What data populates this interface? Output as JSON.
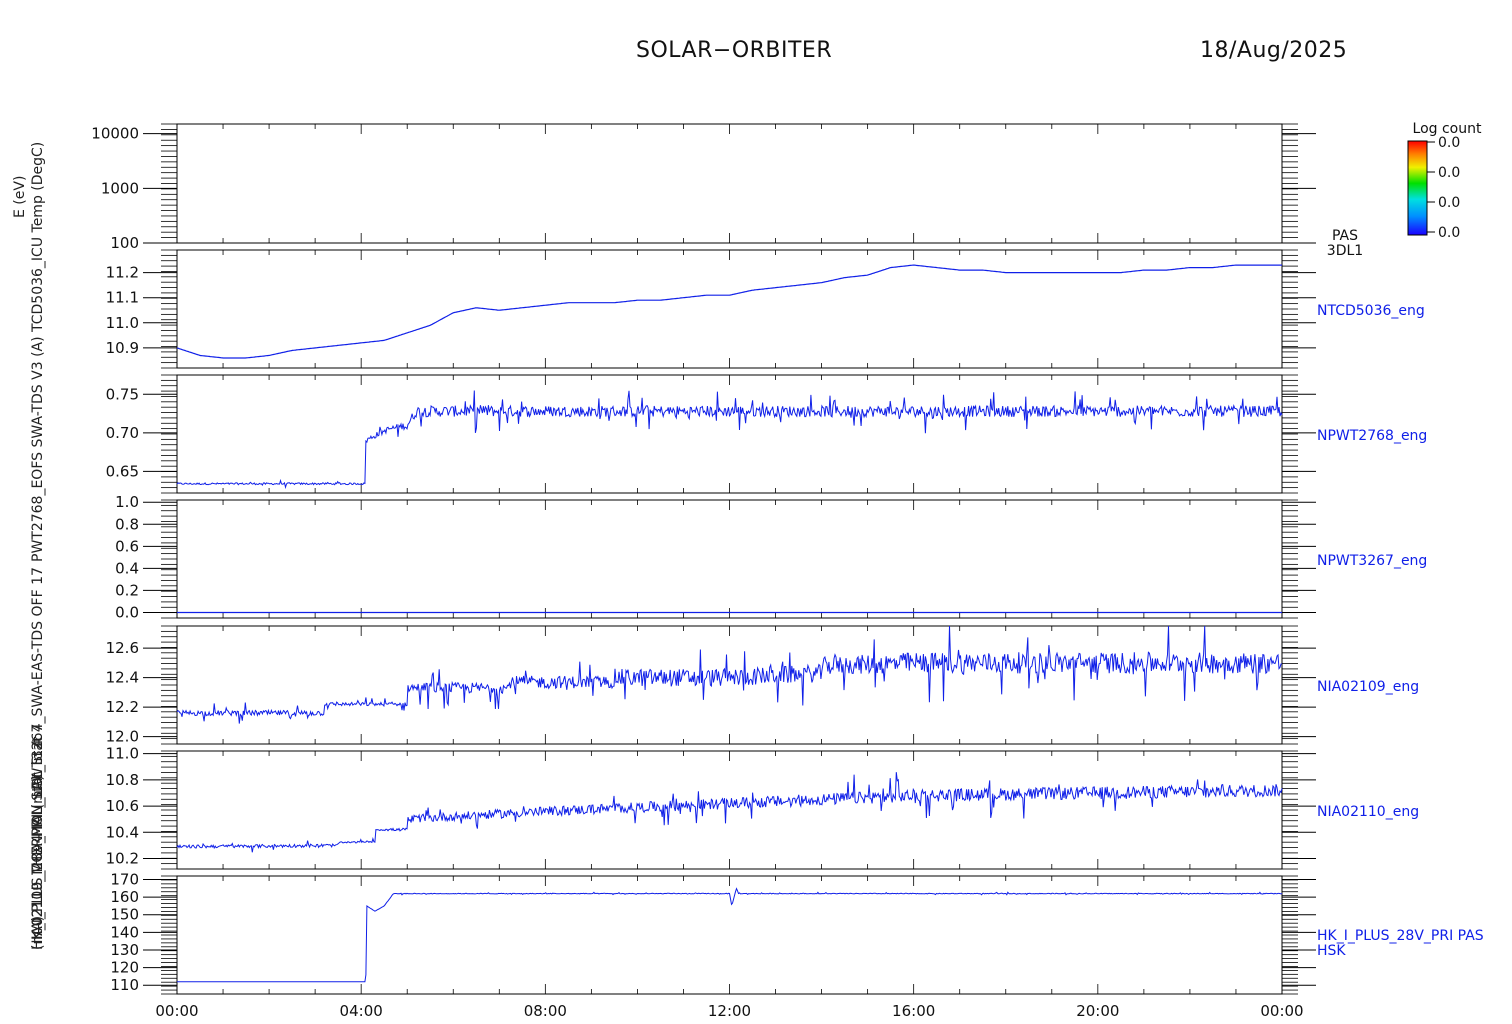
{
  "header": {
    "title": "SOLAR−ORBITER",
    "date": "18/Aug/2025"
  },
  "colorbar": {
    "label": "Log count",
    "ticks": [
      "0.0",
      "0.0",
      "0.0",
      "0.0"
    ]
  },
  "x_axis": {
    "ticks": [
      "00:00",
      "04:00",
      "08:00",
      "12:00",
      "16:00",
      "20:00",
      "00:00"
    ]
  },
  "vertical_labels": [
    "E (eV)",
    "TCD5036_ICU Temp (DegC)",
    "PWT2768_EOFS SWA-TDS V3 (A)",
    "PWT3267_SWA-EAS-TDS OFF 17",
    "IA02109_MCA4 ION_LCL_Stat 4",
    "IA02110_THERMAL_Stat_in 4",
    "HK_I_PLUS_28V_PRI (mA)",
    "(mA)"
  ],
  "chart_data": [
    {
      "type": "spectrogram",
      "name": "PAS 3DL1",
      "label": "PAS\n3DL1",
      "ylabel": "E (eV)",
      "yscale": "log",
      "ylim": [
        100,
        15000
      ],
      "yticks": [
        100,
        1000,
        10000
      ],
      "data": "empty"
    },
    {
      "type": "line",
      "name": "NTCD5036_eng",
      "ylabel": "TCD5036_ICU Temp (DegC)",
      "ylim": [
        10.82,
        11.29
      ],
      "yticks": [
        10.9,
        11.0,
        11.1,
        11.2
      ],
      "x": [
        0,
        0.5,
        1,
        1.5,
        2,
        2.5,
        3,
        3.5,
        4,
        4.5,
        5,
        5.5,
        6,
        6.5,
        7,
        7.5,
        8,
        8.5,
        9,
        9.5,
        10,
        10.5,
        11,
        11.5,
        12,
        12.5,
        13,
        13.5,
        14,
        14.5,
        15,
        15.5,
        16,
        16.5,
        17,
        17.5,
        18,
        18.5,
        19,
        19.5,
        20,
        20.5,
        21,
        21.5,
        22,
        22.5,
        23,
        23.5,
        24
      ],
      "y": [
        10.9,
        10.87,
        10.86,
        10.86,
        10.87,
        10.89,
        10.9,
        10.91,
        10.92,
        10.93,
        10.96,
        10.99,
        11.04,
        11.06,
        11.05,
        11.06,
        11.07,
        11.08,
        11.08,
        11.08,
        11.09,
        11.09,
        11.1,
        11.11,
        11.11,
        11.13,
        11.14,
        11.15,
        11.16,
        11.18,
        11.19,
        11.22,
        11.23,
        11.22,
        11.21,
        11.21,
        11.2,
        11.2,
        11.2,
        11.2,
        11.2,
        11.2,
        11.21,
        11.21,
        11.22,
        11.22,
        11.23,
        11.23,
        11.23
      ]
    },
    {
      "type": "line",
      "name": "NPWT2768_eng",
      "ylabel": "PWT2768_EOFS SWA-TDS V3 (A)",
      "ylim": [
        0.622,
        0.775
      ],
      "yticks": [
        0.65,
        0.7,
        0.75
      ],
      "x": [
        0,
        4.1,
        4.1,
        4.25,
        4.6,
        5.0,
        5.2,
        24
      ],
      "y": [
        0.634,
        0.634,
        0.69,
        0.695,
        0.705,
        0.71,
        0.728,
        0.728
      ],
      "noise": [
        0.002,
        0.002,
        0.006,
        0.006,
        0.006,
        0.008,
        0.012,
        0.012
      ]
    },
    {
      "type": "line",
      "name": "NPWT3267_eng",
      "ylabel": "PWT3267_SWA-EAS-TDS OFF 17",
      "ylim": [
        -0.05,
        1.02
      ],
      "yticks": [
        0.0,
        0.2,
        0.4,
        0.6,
        0.8,
        1.0
      ],
      "x": [
        0,
        24
      ],
      "y": [
        0.0,
        0.0
      ],
      "noise": [
        0,
        0
      ]
    },
    {
      "type": "line",
      "name": "NIA02109_eng",
      "ylabel": "IA02109_MCA4 ION_LCL_Stat 4",
      "ylim": [
        11.95,
        12.75
      ],
      "yticks": [
        12.0,
        12.2,
        12.4,
        12.6
      ],
      "x": [
        0,
        3.2,
        3.2,
        5.0,
        5.0,
        7.2,
        7.2,
        9.5,
        9.5,
        12,
        14,
        14,
        16,
        24
      ],
      "y": [
        12.16,
        12.16,
        12.22,
        12.22,
        12.33,
        12.33,
        12.37,
        12.37,
        12.4,
        12.4,
        12.43,
        12.48,
        12.5,
        12.5
      ],
      "noise": [
        0.03,
        0.03,
        0.02,
        0.02,
        0.06,
        0.06,
        0.07,
        0.07,
        0.1,
        0.1,
        0.1,
        0.1,
        0.12,
        0.12
      ]
    },
    {
      "type": "line",
      "name": "NIA02110_eng",
      "ylabel": "IA02110_THERMAL_Stat_in 4",
      "ylim": [
        10.12,
        11.02
      ],
      "yticks": [
        10.2,
        10.4,
        10.6,
        10.8,
        11.0
      ],
      "x": [
        0,
        3.5,
        3.5,
        4.3,
        4.3,
        5.0,
        5.0,
        8.0,
        12,
        16,
        20,
        24
      ],
      "y": [
        10.29,
        10.3,
        10.32,
        10.33,
        10.42,
        10.42,
        10.5,
        10.56,
        10.62,
        10.68,
        10.7,
        10.72
      ],
      "noise": [
        0.02,
        0.02,
        0.01,
        0.01,
        0.01,
        0.02,
        0.05,
        0.06,
        0.07,
        0.08,
        0.08,
        0.08
      ]
    },
    {
      "type": "line",
      "name": "HK_I_PLUS_28V_PRI PAS HSK",
      "label": "HK_I_PLUS_28V_PRI PAS\nHSK",
      "ylabel": "HK_I_PLUS_28V_PRI (mA)",
      "ylim": [
        105,
        172
      ],
      "yticks": [
        110,
        120,
        130,
        140,
        150,
        160,
        170
      ],
      "x": [
        0,
        4.1,
        4.12,
        4.3,
        4.5,
        4.7,
        4.8,
        12.0,
        12.05,
        12.15,
        12.2,
        12.25,
        24
      ],
      "y": [
        112,
        112,
        155,
        152,
        155,
        162,
        162,
        162,
        155,
        165,
        162,
        162,
        162
      ],
      "noise": [
        0,
        0,
        0,
        0,
        0,
        0.3,
        0.3,
        0.3,
        0,
        0,
        0.3,
        0.3,
        0.3
      ]
    }
  ]
}
